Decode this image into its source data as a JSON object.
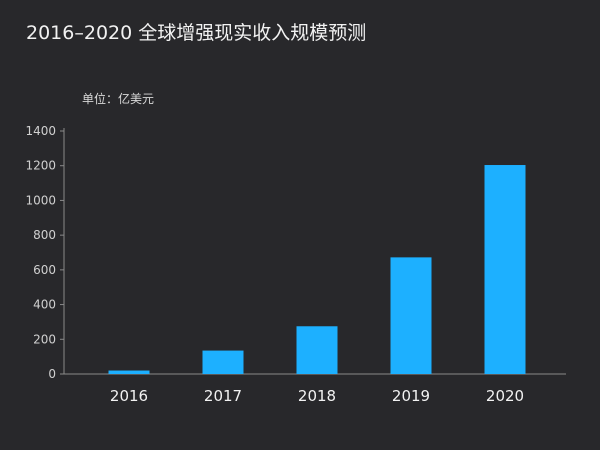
{
  "chart_data": {
    "type": "bar",
    "title": "2016–2020 全球增强现实收入规模预测",
    "unit_label": "单位：亿美元",
    "categories": [
      "2016",
      "2017",
      "2018",
      "2019",
      "2020"
    ],
    "values": [
      20,
      135,
      275,
      672,
      1204
    ],
    "ylim": [
      0,
      1400
    ],
    "yticks": [
      0,
      200,
      400,
      600,
      800,
      1000,
      1200,
      1400
    ],
    "grid": false,
    "legend": "none",
    "bar_color": "#1db0ff",
    "background_color": "#28282b",
    "text_color": "#f2f2f2",
    "axis_color": "#8a8a8a"
  }
}
